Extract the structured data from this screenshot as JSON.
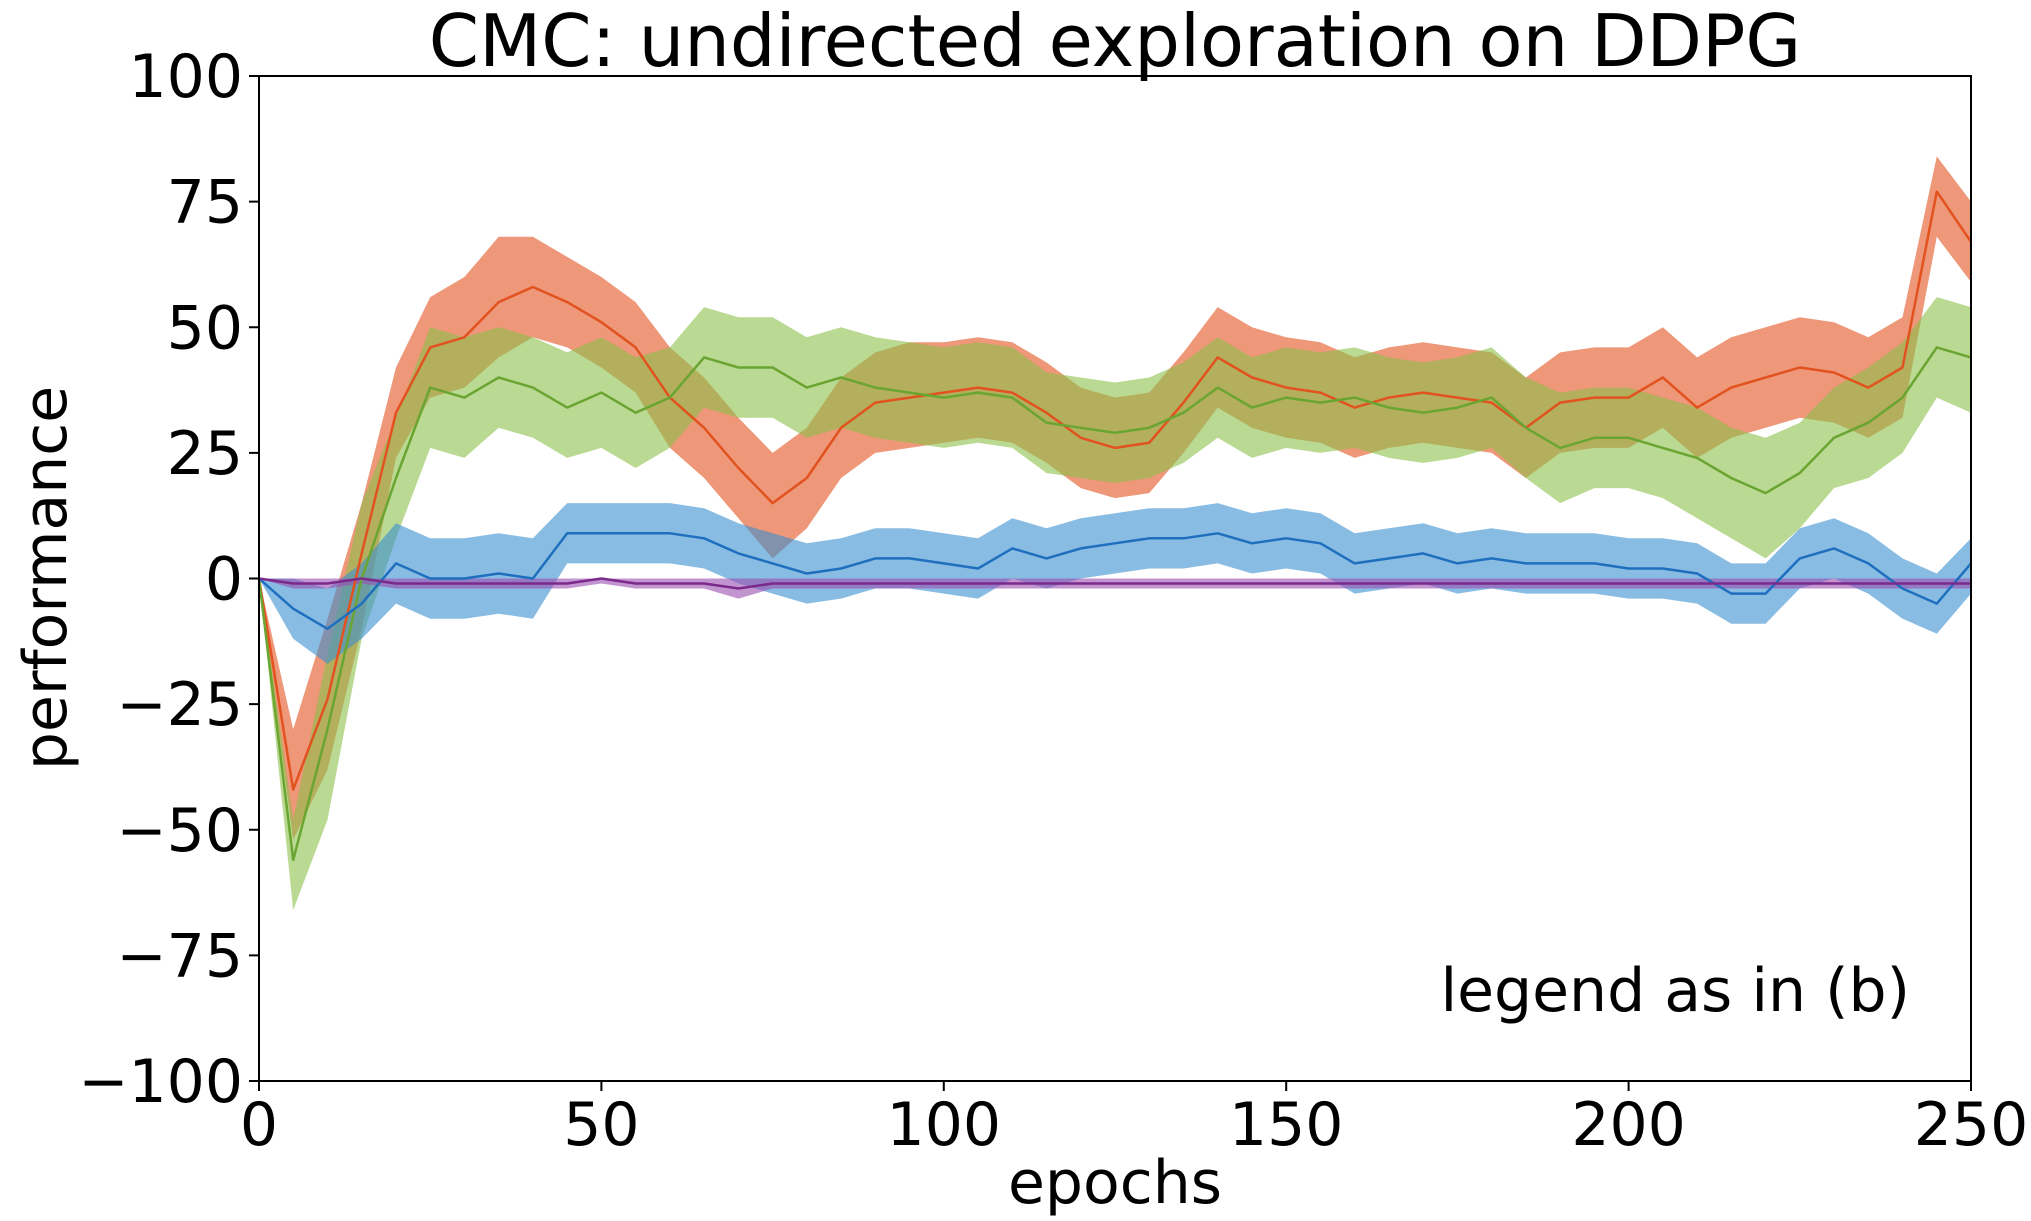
{
  "chart_data": {
    "type": "line",
    "title": "CMC: undirected exploration on DDPG",
    "xlabel": "epochs",
    "ylabel": "performance",
    "xlim": [
      0,
      250
    ],
    "ylim": [
      -100,
      100
    ],
    "xticks": [
      0,
      50,
      100,
      150,
      200,
      250
    ],
    "yticks": [
      -100,
      -75,
      -50,
      -25,
      0,
      25,
      50,
      75,
      100
    ],
    "xtick_labels": [
      "0",
      "50",
      "100",
      "150",
      "200",
      "250"
    ],
    "ytick_labels": [
      "−100",
      "−75",
      "−50",
      "−25",
      "0",
      "25",
      "50",
      "75",
      "100"
    ],
    "annotation": "legend as in (b)",
    "grid": false,
    "series": [
      {
        "color": "#e2521f",
        "band_color": "#e2521f",
        "x": [
          0,
          5,
          10,
          15,
          20,
          25,
          30,
          35,
          40,
          45,
          50,
          55,
          60,
          65,
          70,
          75,
          80,
          85,
          90,
          95,
          100,
          105,
          110,
          115,
          120,
          125,
          130,
          135,
          140,
          145,
          150,
          155,
          160,
          165,
          170,
          175,
          180,
          185,
          190,
          195,
          200,
          205,
          210,
          215,
          220,
          225,
          230,
          235,
          240,
          245,
          250
        ],
        "y": [
          0,
          -42,
          -24,
          5,
          33,
          46,
          48,
          55,
          58,
          55,
          51,
          46,
          36,
          30,
          22,
          15,
          20,
          30,
          35,
          36,
          37,
          38,
          37,
          33,
          28,
          26,
          27,
          35,
          44,
          40,
          38,
          37,
          34,
          36,
          37,
          36,
          35,
          30,
          35,
          36,
          36,
          40,
          34,
          38,
          40,
          42,
          41,
          38,
          42,
          77,
          67
        ],
        "upper": [
          0,
          -30,
          -8,
          15,
          42,
          56,
          60,
          68,
          68,
          64,
          60,
          55,
          46,
          40,
          32,
          25,
          30,
          40,
          45,
          47,
          47,
          48,
          47,
          43,
          38,
          36,
          37,
          45,
          54,
          50,
          48,
          47,
          44,
          46,
          47,
          46,
          45,
          40,
          45,
          46,
          46,
          50,
          44,
          48,
          50,
          52,
          51,
          48,
          52,
          84,
          75
        ],
        "lower": [
          0,
          -52,
          -38,
          -10,
          24,
          36,
          38,
          44,
          48,
          46,
          42,
          37,
          26,
          20,
          12,
          4,
          10,
          20,
          25,
          26,
          27,
          28,
          27,
          23,
          18,
          16,
          17,
          25,
          34,
          30,
          28,
          27,
          24,
          26,
          27,
          26,
          25,
          20,
          25,
          26,
          26,
          30,
          24,
          28,
          30,
          32,
          31,
          28,
          32,
          68,
          59
        ]
      },
      {
        "color": "#6aa532",
        "band_color": "#8cbf4a",
        "x": [
          0,
          5,
          10,
          15,
          20,
          25,
          30,
          35,
          40,
          45,
          50,
          55,
          60,
          65,
          70,
          75,
          80,
          85,
          90,
          95,
          100,
          105,
          110,
          115,
          120,
          125,
          130,
          135,
          140,
          145,
          150,
          155,
          160,
          165,
          170,
          175,
          180,
          185,
          190,
          195,
          200,
          205,
          210,
          215,
          220,
          225,
          230,
          235,
          240,
          245,
          250
        ],
        "y": [
          0,
          -56,
          -30,
          0,
          20,
          38,
          36,
          40,
          38,
          34,
          37,
          33,
          36,
          44,
          42,
          42,
          38,
          40,
          38,
          37,
          36,
          37,
          36,
          31,
          30,
          29,
          30,
          33,
          38,
          34,
          36,
          35,
          36,
          34,
          33,
          34,
          36,
          30,
          26,
          28,
          28,
          26,
          24,
          20,
          17,
          21,
          28,
          31,
          36,
          46,
          44
        ],
        "upper": [
          0,
          -48,
          -15,
          15,
          32,
          50,
          48,
          50,
          48,
          45,
          48,
          44,
          46,
          54,
          52,
          52,
          48,
          50,
          48,
          47,
          46,
          47,
          46,
          41,
          40,
          39,
          40,
          43,
          48,
          44,
          46,
          45,
          46,
          44,
          43,
          44,
          46,
          40,
          37,
          38,
          38,
          36,
          34,
          30,
          28,
          31,
          38,
          42,
          47,
          56,
          54
        ],
        "lower": [
          0,
          -66,
          -48,
          -12,
          8,
          26,
          24,
          30,
          28,
          24,
          26,
          22,
          26,
          34,
          32,
          32,
          28,
          30,
          28,
          27,
          26,
          27,
          26,
          21,
          20,
          19,
          20,
          23,
          28,
          24,
          26,
          25,
          26,
          24,
          23,
          24,
          26,
          20,
          15,
          18,
          18,
          16,
          12,
          8,
          4,
          10,
          18,
          20,
          25,
          36,
          33
        ]
      },
      {
        "color": "#1f6fbf",
        "band_color": "#3a8fd0",
        "x": [
          0,
          5,
          10,
          15,
          20,
          25,
          30,
          35,
          40,
          45,
          50,
          55,
          60,
          65,
          70,
          75,
          80,
          85,
          90,
          95,
          100,
          105,
          110,
          115,
          120,
          125,
          130,
          135,
          140,
          145,
          150,
          155,
          160,
          165,
          170,
          175,
          180,
          185,
          190,
          195,
          200,
          205,
          210,
          215,
          220,
          225,
          230,
          235,
          240,
          245,
          250
        ],
        "y": [
          0,
          -6,
          -10,
          -5,
          3,
          0,
          0,
          1,
          0,
          9,
          9,
          9,
          9,
          8,
          5,
          3,
          1,
          2,
          4,
          4,
          3,
          2,
          6,
          4,
          6,
          7,
          8,
          8,
          9,
          7,
          8,
          7,
          3,
          4,
          5,
          3,
          4,
          3,
          3,
          3,
          2,
          2,
          1,
          -3,
          -3,
          4,
          6,
          3,
          -2,
          -5,
          3
        ],
        "upper": [
          0,
          0,
          -2,
          3,
          11,
          8,
          8,
          9,
          8,
          15,
          15,
          15,
          15,
          14,
          11,
          9,
          7,
          8,
          10,
          10,
          9,
          8,
          12,
          10,
          12,
          13,
          14,
          14,
          15,
          13,
          14,
          13,
          9,
          10,
          11,
          9,
          10,
          9,
          9,
          9,
          8,
          8,
          7,
          3,
          3,
          10,
          12,
          9,
          4,
          1,
          8
        ],
        "lower": [
          0,
          -12,
          -17,
          -12,
          -5,
          -8,
          -8,
          -7,
          -8,
          3,
          3,
          3,
          3,
          2,
          -1,
          -3,
          -5,
          -4,
          -2,
          -2,
          -3,
          -4,
          0,
          -2,
          0,
          1,
          2,
          2,
          3,
          1,
          2,
          1,
          -3,
          -2,
          -1,
          -3,
          -2,
          -3,
          -3,
          -3,
          -4,
          -4,
          -5,
          -9,
          -9,
          -2,
          0,
          -3,
          -8,
          -11,
          -3
        ]
      },
      {
        "color": "#7b2a8c",
        "band_color": "#9b4fb0",
        "x": [
          0,
          5,
          10,
          15,
          20,
          25,
          30,
          35,
          40,
          45,
          50,
          55,
          60,
          65,
          70,
          75,
          80,
          85,
          90,
          95,
          100,
          105,
          110,
          115,
          120,
          125,
          130,
          135,
          140,
          145,
          150,
          155,
          160,
          165,
          170,
          175,
          180,
          185,
          190,
          195,
          200,
          205,
          210,
          215,
          220,
          225,
          230,
          235,
          240,
          245,
          250
        ],
        "y": [
          0,
          -1,
          -1,
          0,
          -1,
          -1,
          -1,
          -1,
          -1,
          -1,
          0,
          -1,
          -1,
          -1,
          -2,
          -1,
          -1,
          -1,
          -1,
          -1,
          -1,
          -1,
          -1,
          -1,
          -1,
          -1,
          -1,
          -1,
          -1,
          -1,
          -1,
          -1,
          -1,
          -1,
          -1,
          -1,
          -1,
          -1,
          -1,
          -1,
          -1,
          -1,
          -1,
          -1,
          -1,
          -1,
          -1,
          -1,
          -1,
          -1,
          -1
        ],
        "upper": [
          0,
          0,
          0,
          0,
          0,
          0,
          0,
          0,
          0,
          0,
          0,
          0,
          0,
          0,
          0,
          0,
          0,
          0,
          0,
          0,
          0,
          0,
          0,
          0,
          0,
          0,
          0,
          0,
          0,
          0,
          0,
          0,
          0,
          0,
          0,
          0,
          0,
          0,
          0,
          0,
          0,
          0,
          0,
          0,
          0,
          0,
          0,
          0,
          0,
          0,
          0
        ],
        "lower": [
          0,
          -2,
          -2,
          -1,
          -2,
          -2,
          -2,
          -2,
          -2,
          -2,
          -1,
          -2,
          -2,
          -2,
          -4,
          -2,
          -2,
          -2,
          -2,
          -2,
          -2,
          -2,
          -2,
          -2,
          -2,
          -2,
          -2,
          -2,
          -2,
          -2,
          -2,
          -2,
          -2,
          -2,
          -2,
          -2,
          -2,
          -2,
          -2,
          -2,
          -2,
          -2,
          -2,
          -2,
          -2,
          -2,
          -2,
          -2,
          -2,
          -2,
          -2
        ]
      }
    ]
  }
}
